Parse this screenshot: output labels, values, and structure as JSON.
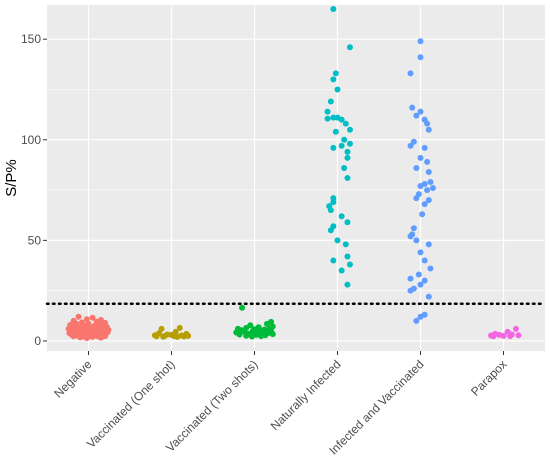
{
  "chart_data": {
    "type": "scatter",
    "title": "",
    "xlabel": "",
    "ylabel": "S/P%",
    "ylim": [
      -5,
      167
    ],
    "yticks": [
      0,
      50,
      100,
      150
    ],
    "grid": true,
    "legend": "none",
    "background": "#ebebeb",
    "gridline_color": "#ffffff",
    "threshold": {
      "value": 18.5,
      "style": "dotted",
      "color": "#000000"
    },
    "categories": [
      "Negative",
      "Vaccinated (One shot)",
      "Vaccinated (Two shots)",
      "Naturally Infected",
      "Infected and Vaccinated",
      "Parapox"
    ],
    "series": [
      {
        "category": "Negative",
        "color": "#f8766d",
        "points": [
          [
            -0.12,
            12
          ],
          [
            0.05,
            11.5
          ],
          [
            -0.02,
            10.8
          ],
          [
            0.15,
            10.5
          ],
          [
            -0.18,
            10
          ],
          [
            0.1,
            9.6
          ],
          [
            -0.08,
            9.2
          ],
          [
            0.2,
            9
          ],
          [
            -0.15,
            8.7
          ],
          [
            0.0,
            8.5
          ],
          [
            0.12,
            8.2
          ],
          [
            -0.22,
            8
          ],
          [
            0.18,
            7.8
          ],
          [
            -0.05,
            7.6
          ],
          [
            0.07,
            7.4
          ],
          [
            -0.2,
            7.2
          ],
          [
            0.22,
            7
          ],
          [
            -0.1,
            6.9
          ],
          [
            0.02,
            6.8
          ],
          [
            0.14,
            6.6
          ],
          [
            -0.16,
            6.5
          ],
          [
            0.09,
            6.4
          ],
          [
            -0.03,
            6.2
          ],
          [
            0.2,
            6.1
          ],
          [
            -0.24,
            6
          ],
          [
            0.05,
            5.9
          ],
          [
            -0.12,
            5.8
          ],
          [
            0.16,
            5.7
          ],
          [
            -0.07,
            5.6
          ],
          [
            0.24,
            5.5
          ],
          [
            -0.19,
            5.4
          ],
          [
            0.0,
            5.3
          ],
          [
            0.11,
            5.2
          ],
          [
            -0.14,
            5.1
          ],
          [
            0.19,
            5
          ],
          [
            -0.04,
            4.9
          ],
          [
            0.07,
            4.8
          ],
          [
            -0.21,
            4.7
          ],
          [
            0.13,
            4.6
          ],
          [
            -0.09,
            4.5
          ],
          [
            0.23,
            4.4
          ],
          [
            -0.17,
            4.3
          ],
          [
            0.03,
            4.2
          ],
          [
            0.16,
            4.1
          ],
          [
            -0.06,
            4
          ],
          [
            -0.23,
            3.9
          ],
          [
            0.1,
            3.8
          ],
          [
            -0.11,
            3.7
          ],
          [
            0.21,
            3.6
          ],
          [
            0.0,
            3.5
          ],
          [
            -0.15,
            3.4
          ],
          [
            0.14,
            3.3
          ],
          [
            -0.02,
            3.2
          ],
          [
            0.06,
            3.1
          ],
          [
            -0.2,
            3
          ],
          [
            0.18,
            2.9
          ],
          [
            -0.08,
            2.8
          ],
          [
            0.09,
            2.7
          ],
          [
            -0.13,
            2.6
          ],
          [
            0.02,
            2.5
          ],
          [
            0.2,
            2.4
          ],
          [
            -0.18,
            2.3
          ],
          [
            0.12,
            2.2
          ],
          [
            -0.05,
            2.1
          ],
          [
            0.05,
            2
          ],
          [
            -0.1,
            1.8
          ],
          [
            0.15,
            1.6
          ],
          [
            -0.02,
            1.4
          ]
        ]
      },
      {
        "category": "Vaccinated (One shot)",
        "color": "#b79f00",
        "points": [
          [
            -0.12,
            6
          ],
          [
            0.1,
            6.5
          ],
          [
            0.05,
            4.5
          ],
          [
            -0.15,
            3.8
          ],
          [
            0.18,
            3.5
          ],
          [
            -0.05,
            3.2
          ],
          [
            0.0,
            3.0
          ],
          [
            -0.2,
            2.8
          ],
          [
            0.12,
            2.7
          ],
          [
            -0.08,
            2.6
          ],
          [
            0.2,
            2.5
          ],
          [
            0.03,
            2.4
          ],
          [
            -0.18,
            2.3
          ],
          [
            0.15,
            2.2
          ],
          [
            -0.1,
            2.1
          ],
          [
            0.07,
            2.0
          ]
        ]
      },
      {
        "category": "Vaccinated (Two shots)",
        "color": "#00ba38",
        "points": [
          [
            -0.15,
            16.5
          ],
          [
            0.2,
            9.5
          ],
          [
            0.15,
            8.5
          ],
          [
            -0.05,
            7.8
          ],
          [
            0.22,
            7.2
          ],
          [
            0.05,
            6.8
          ],
          [
            -0.1,
            6.5
          ],
          [
            0.18,
            6.2
          ],
          [
            -0.2,
            6.0
          ],
          [
            0.0,
            5.8
          ],
          [
            0.12,
            5.6
          ],
          [
            -0.16,
            5.4
          ],
          [
            0.08,
            5.2
          ],
          [
            -0.02,
            5.0
          ],
          [
            0.2,
            4.8
          ],
          [
            -0.12,
            4.6
          ],
          [
            0.1,
            4.4
          ],
          [
            -0.22,
            4.2
          ],
          [
            0.04,
            4.0
          ],
          [
            0.16,
            3.8
          ],
          [
            -0.07,
            3.6
          ],
          [
            0.22,
            3.4
          ],
          [
            -0.18,
            3.2
          ],
          [
            0.02,
            3.0
          ],
          [
            0.13,
            2.8
          ],
          [
            -0.1,
            2.6
          ],
          [
            0.08,
            2.4
          ],
          [
            -0.03,
            2.2
          ]
        ]
      },
      {
        "category": "Naturally Infected",
        "color": "#00bfc4",
        "points": [
          [
            -0.05,
            165
          ],
          [
            0.15,
            146
          ],
          [
            -0.02,
            133
          ],
          [
            -0.05,
            130
          ],
          [
            0.0,
            125
          ],
          [
            -0.08,
            119
          ],
          [
            -0.12,
            114
          ],
          [
            -0.05,
            111
          ],
          [
            0.0,
            111
          ],
          [
            -0.12,
            110.5
          ],
          [
            0.05,
            110
          ],
          [
            0.1,
            108
          ],
          [
            0.15,
            105
          ],
          [
            -0.02,
            104
          ],
          [
            0.08,
            100
          ],
          [
            0.15,
            98
          ],
          [
            0.05,
            97
          ],
          [
            -0.05,
            96
          ],
          [
            0.12,
            94
          ],
          [
            0.12,
            91
          ],
          [
            0.08,
            86
          ],
          [
            0.12,
            81
          ],
          [
            -0.05,
            71
          ],
          [
            -0.05,
            69
          ],
          [
            -0.1,
            67
          ],
          [
            -0.08,
            65
          ],
          [
            0.05,
            62
          ],
          [
            0.12,
            59
          ],
          [
            -0.05,
            57
          ],
          [
            -0.08,
            55
          ],
          [
            0.0,
            50
          ],
          [
            0.1,
            48
          ],
          [
            0.12,
            42
          ],
          [
            -0.05,
            40
          ],
          [
            0.15,
            38
          ],
          [
            0.05,
            35
          ],
          [
            0.12,
            28
          ]
        ]
      },
      {
        "category": "Infected and Vaccinated",
        "color": "#619cff",
        "points": [
          [
            0.0,
            149
          ],
          [
            0.0,
            141
          ],
          [
            -0.12,
            133
          ],
          [
            -0.1,
            116
          ],
          [
            0.0,
            114
          ],
          [
            -0.05,
            112
          ],
          [
            0.05,
            110
          ],
          [
            0.08,
            108
          ],
          [
            0.1,
            105
          ],
          [
            -0.08,
            99
          ],
          [
            -0.12,
            97
          ],
          [
            0.05,
            96
          ],
          [
            0.0,
            91
          ],
          [
            0.08,
            89
          ],
          [
            -0.05,
            86
          ],
          [
            0.1,
            84
          ],
          [
            0.12,
            79
          ],
          [
            0.05,
            78
          ],
          [
            0.0,
            77
          ],
          [
            0.15,
            76
          ],
          [
            0.08,
            75
          ],
          [
            -0.02,
            73
          ],
          [
            -0.05,
            71
          ],
          [
            0.1,
            70
          ],
          [
            0.05,
            68
          ],
          [
            0.02,
            63
          ],
          [
            -0.08,
            56
          ],
          [
            -0.1,
            53
          ],
          [
            -0.12,
            52
          ],
          [
            -0.05,
            50
          ],
          [
            0.1,
            48
          ],
          [
            0.0,
            44
          ],
          [
            0.05,
            40
          ],
          [
            0.12,
            36
          ],
          [
            -0.02,
            33
          ],
          [
            -0.12,
            31
          ],
          [
            0.05,
            30
          ],
          [
            0.0,
            28
          ],
          [
            -0.08,
            26
          ],
          [
            -0.12,
            25
          ],
          [
            0.1,
            22
          ],
          [
            0.0,
            12
          ],
          [
            0.05,
            13
          ],
          [
            -0.05,
            10
          ]
        ]
      },
      {
        "category": "Parapox",
        "color": "#f564e3",
        "points": [
          [
            0.15,
            6
          ],
          [
            0.05,
            4.5
          ],
          [
            -0.1,
            3.5
          ],
          [
            0.1,
            3.2
          ],
          [
            -0.05,
            3.0
          ],
          [
            0.18,
            2.8
          ],
          [
            -0.15,
            2.7
          ],
          [
            0.0,
            2.5
          ],
          [
            0.08,
            2.4
          ],
          [
            -0.12,
            2.3
          ]
        ]
      }
    ]
  }
}
